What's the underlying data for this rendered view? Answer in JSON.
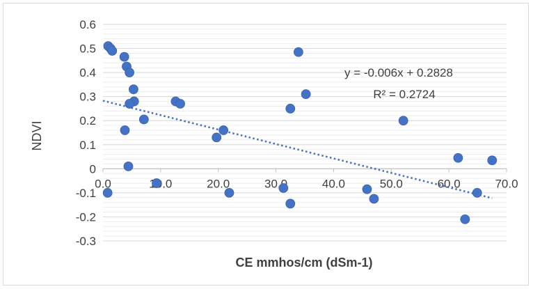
{
  "chart_data": {
    "type": "scatter",
    "title": "",
    "xlabel": "CE mmhos/cm (dSm-1)",
    "ylabel": "NDVI",
    "xlim": [
      0,
      70
    ],
    "ylim": [
      -0.3,
      0.6
    ],
    "x_ticks": [
      "0.0",
      "10.0",
      "20.0",
      "30.0",
      "40.0",
      "50.0",
      "60.0",
      "70.0"
    ],
    "y_ticks": [
      "0.6",
      "0.5",
      "0.4",
      "0.3",
      "0.2",
      "0.1",
      "0",
      "-0.1",
      "-0.2",
      "-0.3"
    ],
    "grid": true,
    "legend": "none",
    "colors": {
      "points": "#4472c4",
      "trendline": "#4472c4",
      "grid": "#d9d9d9",
      "axis": "#bfbfbf"
    },
    "series": [
      {
        "points": [
          [
            0.8,
            -0.1
          ],
          [
            0.9,
            0.51
          ],
          [
            1.3,
            0.5
          ],
          [
            1.6,
            0.49
          ],
          [
            3.7,
            0.465
          ],
          [
            4.1,
            0.425
          ],
          [
            4.6,
            0.4
          ],
          [
            5.3,
            0.33
          ],
          [
            5.4,
            0.28
          ],
          [
            4.6,
            0.27
          ],
          [
            3.8,
            0.16
          ],
          [
            4.4,
            0.01
          ],
          [
            7.1,
            0.205
          ],
          [
            9.3,
            -0.06
          ],
          [
            12.6,
            0.28
          ],
          [
            13.4,
            0.27
          ],
          [
            19.7,
            0.13
          ],
          [
            20.9,
            0.16
          ],
          [
            21.9,
            -0.1
          ],
          [
            31.3,
            -0.08
          ],
          [
            32.5,
            0.25
          ],
          [
            32.5,
            -0.145
          ],
          [
            33.9,
            0.485
          ],
          [
            35.2,
            0.31
          ],
          [
            45.8,
            -0.085
          ],
          [
            47.0,
            -0.125
          ],
          [
            52.1,
            0.2
          ],
          [
            61.6,
            0.045
          ],
          [
            62.8,
            -0.21
          ],
          [
            64.9,
            -0.1
          ],
          [
            67.5,
            0.035
          ]
        ]
      }
    ],
    "trendline": {
      "type": "linear",
      "x_range": [
        0,
        67.5
      ],
      "equation": "y = -0.006x + 0.2828",
      "r_squared": "R² = 0.2724"
    }
  }
}
